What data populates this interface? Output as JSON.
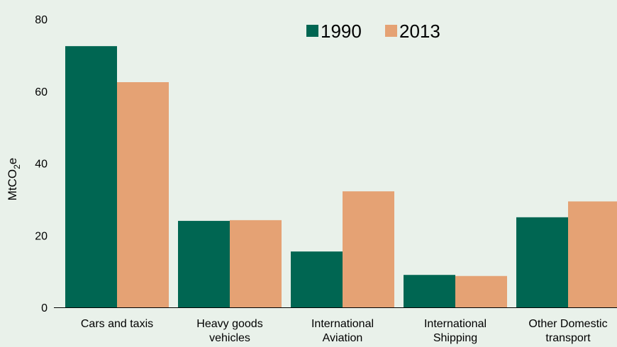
{
  "chart_data": {
    "type": "bar",
    "categories": [
      [
        "Cars and taxis"
      ],
      [
        "Heavy goods",
        "vehicles"
      ],
      [
        "International",
        "Aviation"
      ],
      [
        "International",
        "Shipping"
      ],
      [
        "Other Domestic",
        "transport"
      ]
    ],
    "series": [
      {
        "name": "1990",
        "color": "#006652",
        "values": [
          72.5,
          24.0,
          15.5,
          9.0,
          25.0
        ]
      },
      {
        "name": "2013",
        "color": "#e5a274",
        "values": [
          62.5,
          24.2,
          32.2,
          8.7,
          29.4
        ]
      }
    ],
    "yticks": [
      "0",
      "20",
      "40",
      "60",
      "80"
    ],
    "ylim": [
      0,
      80
    ],
    "ylabel": {
      "base": "MtCO",
      "sub": "2",
      "suffix": "e"
    },
    "xlabel": "",
    "title": "",
    "legend_position": "top-right",
    "grid": false,
    "background": "#e9f1ea"
  }
}
